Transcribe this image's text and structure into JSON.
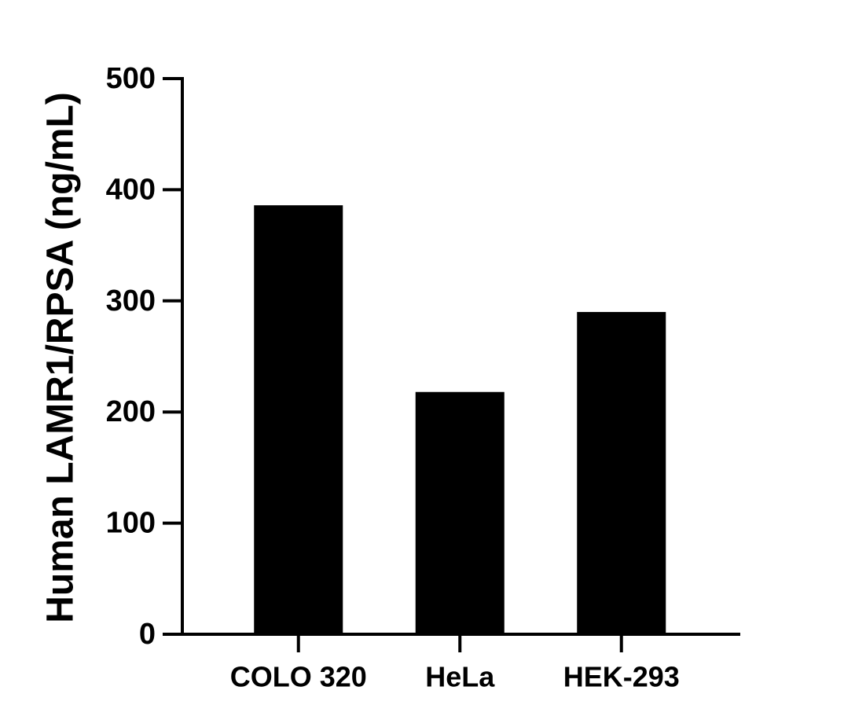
{
  "chart_data": {
    "type": "bar",
    "y_label": "Human LAMR1/RPSA (ng/mL)",
    "categories": [
      "COLO 320",
      "HeLa",
      "HEK-293"
    ],
    "values": [
      386,
      218,
      290
    ],
    "color": "#000000",
    "ylim": [
      0,
      500
    ],
    "yticks": [
      0,
      100,
      200,
      300,
      400,
      500
    ],
    "grid": false
  }
}
